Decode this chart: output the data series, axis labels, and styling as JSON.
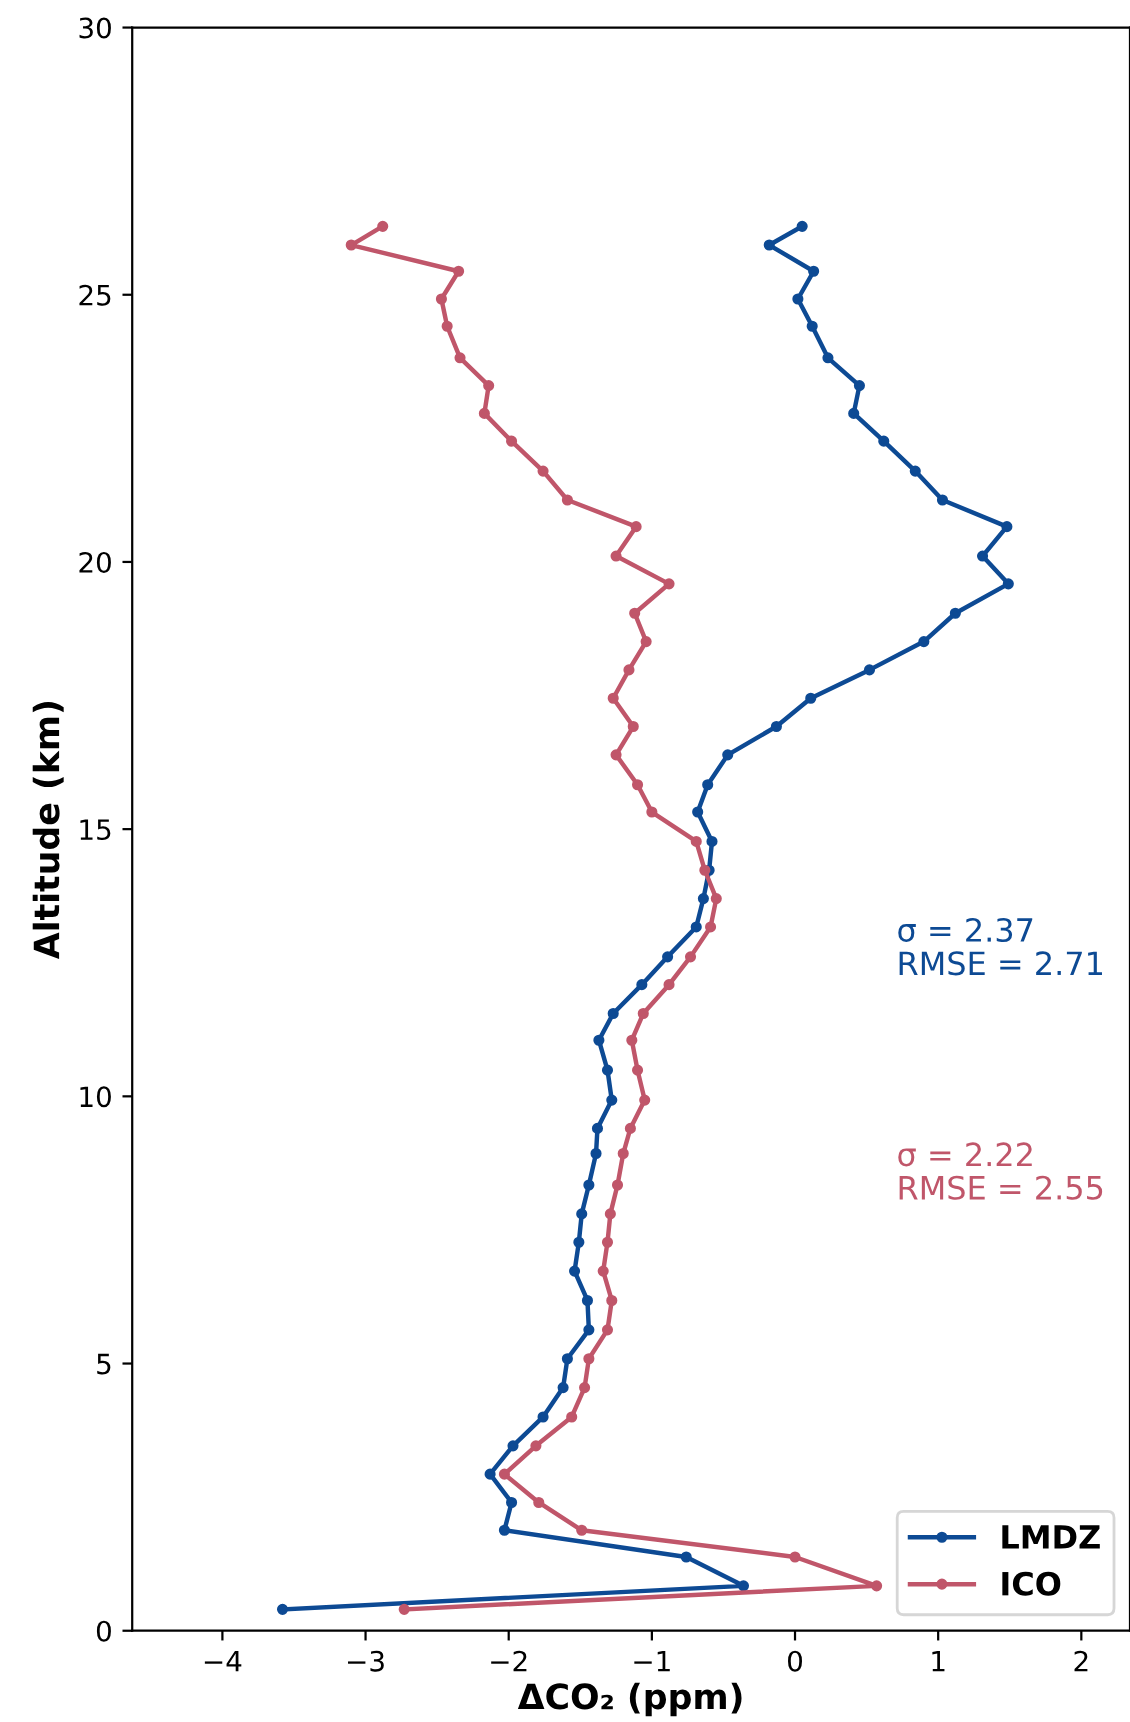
{
  "chart_data": {
    "type": "line",
    "xlabel": "ΔCO₂ (ppm)",
    "ylabel": "Altitude (km)",
    "xlim": [
      -4.63,
      2.34
    ],
    "xticks": [
      -4,
      -3,
      -2,
      -1,
      0,
      1,
      2
    ],
    "ylim": [
      0,
      30
    ],
    "yticks": [
      0,
      5,
      10,
      15,
      20,
      25,
      30
    ],
    "grid": false,
    "legend": "bottom right",
    "marker": "circle",
    "line_style": "solid",
    "series": [
      {
        "name": "LMDZ",
        "color": "#0d4a94",
        "values": [
          0.4,
          0.84,
          1.38,
          1.88,
          2.4,
          2.93,
          3.46,
          4.0,
          4.55,
          5.09,
          5.63,
          6.18,
          6.73,
          7.27,
          7.8,
          8.34,
          8.93,
          9.4,
          9.93,
          10.49,
          11.05,
          11.55,
          12.09,
          12.61,
          13.17,
          13.7,
          14.23,
          14.77,
          15.32,
          15.83,
          16.39,
          16.92,
          17.45,
          17.98,
          18.51,
          19.04,
          19.59,
          20.11,
          20.66,
          21.16,
          21.7,
          22.26,
          22.78,
          23.3,
          23.82,
          24.41,
          24.92,
          25.44,
          25.93,
          26.28
        ],
        "x": [
          -3.58,
          -0.36,
          -0.76,
          -2.03,
          -1.98,
          -2.13,
          -1.97,
          -1.76,
          -1.62,
          -1.59,
          -1.44,
          -1.45,
          -1.54,
          -1.51,
          -1.49,
          -1.44,
          -1.39,
          -1.38,
          -1.28,
          -1.31,
          -1.37,
          -1.27,
          -1.07,
          -0.89,
          -0.69,
          -0.64,
          -0.6,
          -0.58,
          -0.68,
          -0.61,
          -0.47,
          -0.13,
          0.11,
          0.52,
          0.9,
          1.12,
          1.49,
          1.31,
          1.48,
          1.03,
          0.84,
          0.62,
          0.41,
          0.45,
          0.23,
          0.12,
          0.02,
          0.13,
          -0.18,
          0.05
        ]
      },
      {
        "name": "ICO",
        "color": "#c0566a",
        "values": [
          0.4,
          0.84,
          1.38,
          1.88,
          2.4,
          2.93,
          3.46,
          4.0,
          4.55,
          5.09,
          5.63,
          6.18,
          6.73,
          7.27,
          7.8,
          8.34,
          8.93,
          9.4,
          9.93,
          10.49,
          11.05,
          11.55,
          12.09,
          12.61,
          13.17,
          13.7,
          14.23,
          14.77,
          15.32,
          15.83,
          16.39,
          16.92,
          17.45,
          17.98,
          18.51,
          19.04,
          19.59,
          20.11,
          20.66,
          21.16,
          21.7,
          22.26,
          22.78,
          23.3,
          23.82,
          24.41,
          24.92,
          25.44,
          25.93,
          26.28
        ],
        "x": [
          -2.73,
          0.57,
          0.0,
          -1.49,
          -1.79,
          -2.03,
          -1.81,
          -1.56,
          -1.47,
          -1.44,
          -1.31,
          -1.28,
          -1.34,
          -1.31,
          -1.29,
          -1.24,
          -1.2,
          -1.15,
          -1.05,
          -1.1,
          -1.14,
          -1.06,
          -0.88,
          -0.73,
          -0.59,
          -0.55,
          -0.63,
          -0.69,
          -1.0,
          -1.1,
          -1.25,
          -1.13,
          -1.27,
          -1.16,
          -1.04,
          -1.12,
          -0.88,
          -1.25,
          -1.11,
          -1.59,
          -1.76,
          -1.98,
          -2.17,
          -2.14,
          -2.34,
          -2.43,
          -2.47,
          -2.35,
          -3.1,
          -2.88
        ]
      }
    ],
    "annotations": [
      "σ = 2.37\nRMSE = 2.71",
      "σ = 2.22\nRMSE = 2.55"
    ]
  }
}
